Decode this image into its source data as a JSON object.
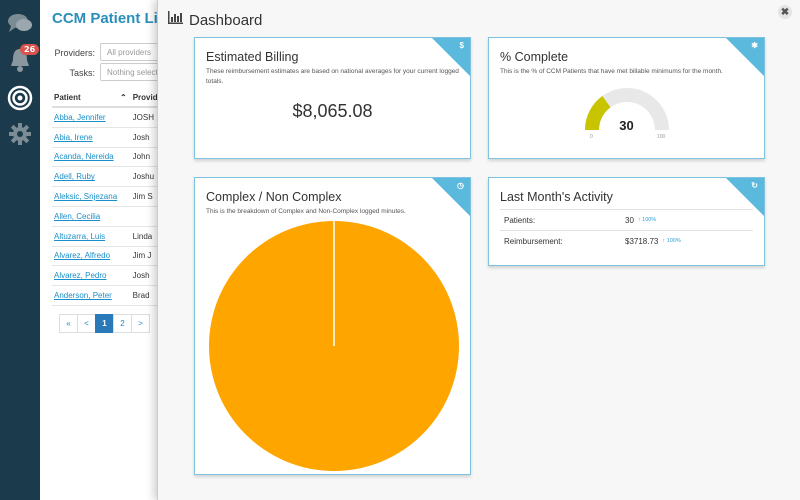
{
  "sidebar": {
    "notification_count": "26",
    "icons": [
      "chat-icon",
      "bell-icon",
      "target-icon",
      "gear-icon"
    ]
  },
  "patient_list": {
    "title": "CCM Patient List",
    "filters": {
      "providers_label": "Providers:",
      "providers_placeholder": "All providers",
      "tasks_label": "Tasks:",
      "tasks_placeholder": "Nothing selected"
    },
    "columns": [
      "Patient",
      "Provider"
    ],
    "rows": [
      {
        "patient": "Abba, Jennifer",
        "provider": "JOSH"
      },
      {
        "patient": "Abia, Irene",
        "provider": "Josh"
      },
      {
        "patient": "Acanda, Nereida",
        "provider": "John"
      },
      {
        "patient": "Adell, Ruby",
        "provider": "Joshu"
      },
      {
        "patient": "Aleksic, Snjezana",
        "provider": "Jim S"
      },
      {
        "patient": "Allen, Cecilia",
        "provider": ""
      },
      {
        "patient": "Altuzarra, Luis",
        "provider": "Linda"
      },
      {
        "patient": "Alvarez, Alfredo",
        "provider": "Jim J"
      },
      {
        "patient": "Alvarez, Pedro",
        "provider": "Josh"
      },
      {
        "patient": "Anderson, Peter",
        "provider": "Brad"
      }
    ],
    "pagination": {
      "first": "«",
      "prev": "<",
      "pages": [
        "1",
        "2"
      ],
      "active": "1",
      "next": ">"
    }
  },
  "dashboard": {
    "title": "Dashboard",
    "close_label": "✖",
    "estimated_billing": {
      "title": "Estimated Billing",
      "subtitle": "These reimbursement estimates are based on national averages for your current logged totals.",
      "value": "$8,065.08",
      "corner_icon": "dollar-icon"
    },
    "percent_complete": {
      "title": "% Complete",
      "subtitle": "This is the % of CCM Patients that have met billable minimums for the month.",
      "value": "30",
      "min_label": "0",
      "max_label": "100",
      "fill_fraction": 0.3,
      "fill_color": "#c9c400",
      "track_color": "#e8e8e8",
      "corner_icon": "runner-icon"
    },
    "complex": {
      "title": "Complex / Non Complex",
      "subtitle": "This is the breakdown of Complex and Non-Complex logged minutes.",
      "corner_icon": "clock-icon",
      "chart_data": {
        "type": "pie",
        "slices": [
          {
            "value": 100,
            "color": "#ffa500"
          }
        ]
      }
    },
    "last_month": {
      "title": "Last Month's Activity",
      "corner_icon": "refresh-icon",
      "rows": [
        {
          "label": "Patients:",
          "value": "30",
          "delta": "↑ 100%"
        },
        {
          "label": "Reimbursement:",
          "value": "$3718.73",
          "delta": "↑ 100%"
        }
      ]
    }
  }
}
